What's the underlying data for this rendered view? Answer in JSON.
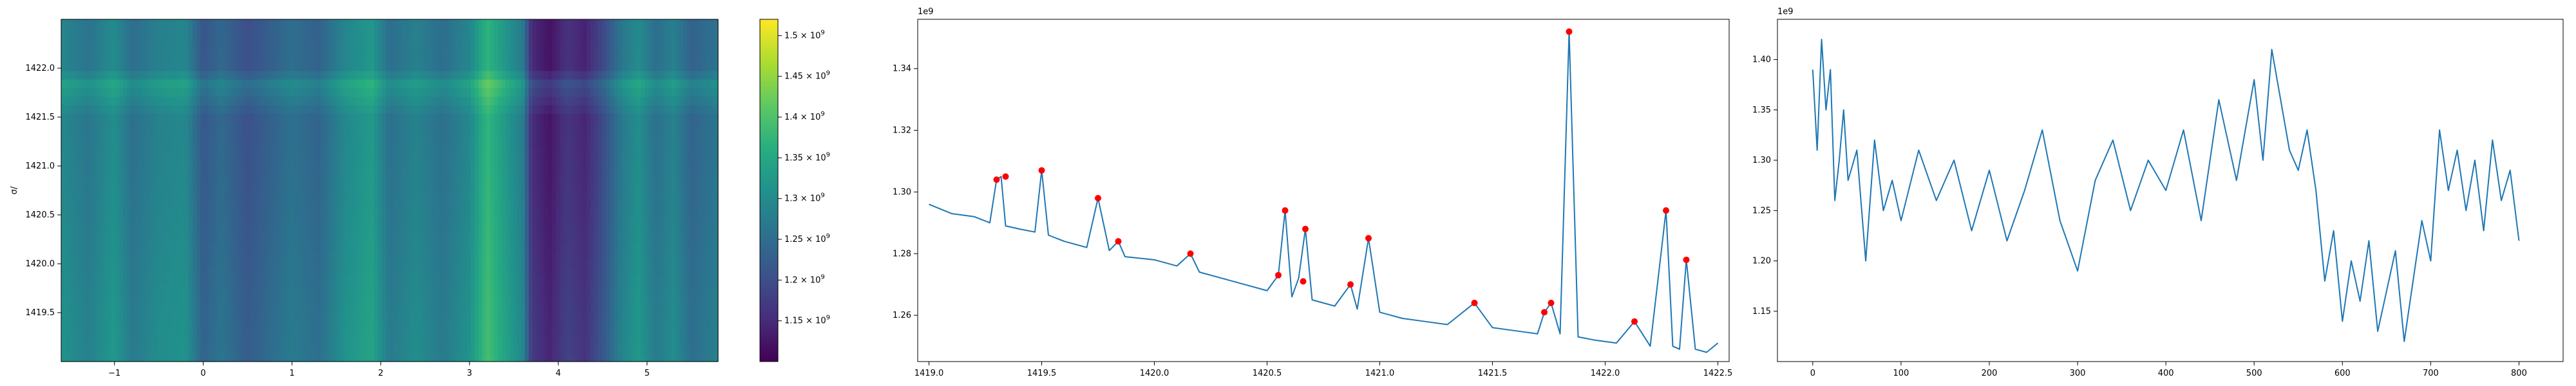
{
  "chart_data": [
    {
      "type": "heatmap",
      "title": "",
      "xlabel": "",
      "ylabel": "σ/",
      "xlim": [
        -1.6,
        5.8
      ],
      "ylim": [
        1419.0,
        1422.5
      ],
      "x_ticks": [
        -1,
        0,
        1,
        2,
        3,
        4,
        5
      ],
      "y_ticks": [
        1419.5,
        1420.0,
        1420.5,
        1421.0,
        1421.5,
        1422.0
      ],
      "colormap": "viridis",
      "colorbar": {
        "range": [
          1100000000.0,
          1520000000.0
        ],
        "ticks": [
          1150000000.0,
          1200000000.0,
          1250000000.0,
          1300000000.0,
          1350000000.0,
          1400000000.0,
          1450000000.0,
          1500000000.0
        ],
        "tick_mantissas": [
          "1.15",
          "1.2",
          "1.25",
          "1.3",
          "1.35",
          "1.4",
          "1.45",
          "1.5"
        ],
        "tick_base": "× 10",
        "tick_exponent": "9"
      },
      "column_profile": [
        [
          -1.6,
          1300000000.0
        ],
        [
          -1.3,
          1270000000.0
        ],
        [
          -1.0,
          1310000000.0
        ],
        [
          -0.8,
          1260000000.0
        ],
        [
          -0.5,
          1290000000.0
        ],
        [
          -0.2,
          1300000000.0
        ],
        [
          0.0,
          1220000000.0
        ],
        [
          0.2,
          1250000000.0
        ],
        [
          0.5,
          1210000000.0
        ],
        [
          0.8,
          1240000000.0
        ],
        [
          1.0,
          1260000000.0
        ],
        [
          1.3,
          1240000000.0
        ],
        [
          1.6,
          1300000000.0
        ],
        [
          1.9,
          1330000000.0
        ],
        [
          2.1,
          1260000000.0
        ],
        [
          2.4,
          1290000000.0
        ],
        [
          2.7,
          1260000000.0
        ],
        [
          3.0,
          1300000000.0
        ],
        [
          3.2,
          1380000000.0
        ],
        [
          3.4,
          1330000000.0
        ],
        [
          3.6,
          1280000000.0
        ],
        [
          3.7,
          1160000000.0
        ],
        [
          3.9,
          1130000000.0
        ],
        [
          4.1,
          1170000000.0
        ],
        [
          4.3,
          1150000000.0
        ],
        [
          4.5,
          1200000000.0
        ],
        [
          4.7,
          1270000000.0
        ],
        [
          4.9,
          1310000000.0
        ],
        [
          5.1,
          1260000000.0
        ],
        [
          5.3,
          1290000000.0
        ],
        [
          5.5,
          1240000000.0
        ],
        [
          5.8,
          1270000000.0
        ]
      ],
      "row_profile": [
        [
          1419.0,
          1296000000.0
        ],
        [
          1419.5,
          1290000000.0
        ],
        [
          1420.0,
          1280000000.0
        ],
        [
          1420.5,
          1270000000.0
        ],
        [
          1421.0,
          1263000000.0
        ],
        [
          1421.5,
          1257000000.0
        ],
        [
          1421.84,
          1352000000.0
        ],
        [
          1422.0,
          1253000000.0
        ],
        [
          1422.5,
          1250000000.0
        ]
      ]
    },
    {
      "type": "line",
      "title": "",
      "xlabel": "",
      "ylabel": "",
      "y_offset_label": "1e9",
      "xlim": [
        1418.95,
        1422.55
      ],
      "ylim": [
        1245000000.0,
        1356000000.0
      ],
      "x_ticks": [
        1419.0,
        1419.5,
        1420.0,
        1420.5,
        1421.0,
        1421.5,
        1422.0,
        1422.5
      ],
      "y_ticks": [
        1260000000.0,
        1280000000.0,
        1300000000.0,
        1320000000.0,
        1340000000.0
      ],
      "y_tick_labels": [
        "1.26",
        "1.28",
        "1.30",
        "1.32",
        "1.34"
      ],
      "series": [
        {
          "x": [
            1419.0,
            1419.1,
            1419.2,
            1419.27,
            1419.3,
            1419.32,
            1419.34,
            1419.4,
            1419.47,
            1419.5,
            1419.53,
            1419.6,
            1419.7,
            1419.75,
            1419.8,
            1419.84,
            1419.87,
            1420.0,
            1420.1,
            1420.16,
            1420.2,
            1420.3,
            1420.4,
            1420.5,
            1420.55,
            1420.58,
            1420.61,
            1420.64,
            1420.67,
            1420.7,
            1420.8,
            1420.87,
            1420.9,
            1420.95,
            1421.0,
            1421.1,
            1421.2,
            1421.3,
            1421.42,
            1421.5,
            1421.6,
            1421.7,
            1421.73,
            1421.76,
            1421.8,
            1421.84,
            1421.88,
            1421.95,
            1422.05,
            1422.13,
            1422.2,
            1422.27,
            1422.3,
            1422.33,
            1422.36,
            1422.4,
            1422.45,
            1422.5
          ],
          "y": [
            1296000000.0,
            1293000000.0,
            1292000000.0,
            1290000000.0,
            1304000000.0,
            1305000000.0,
            1289000000.0,
            1288000000.0,
            1287000000.0,
            1307000000.0,
            1286000000.0,
            1284000000.0,
            1282000000.0,
            1298000000.0,
            1281000000.0,
            1284000000.0,
            1279000000.0,
            1278000000.0,
            1276000000.0,
            1280000000.0,
            1274000000.0,
            1272000000.0,
            1270000000.0,
            1268000000.0,
            1273000000.0,
            1294000000.0,
            1266000000.0,
            1272000000.0,
            1288000000.0,
            1265000000.0,
            1263000000.0,
            1270000000.0,
            1262000000.0,
            1285000000.0,
            1261000000.0,
            1259000000.0,
            1258000000.0,
            1257000000.0,
            1264000000.0,
            1256000000.0,
            1255000000.0,
            1254000000.0,
            1261000000.0,
            1264000000.0,
            1254000000.0,
            1352000000.0,
            1253000000.0,
            1252000000.0,
            1251000000.0,
            1258000000.0,
            1250000000.0,
            1294000000.0,
            1250000000.0,
            1249000000.0,
            1278000000.0,
            1249000000.0,
            1248000000.0,
            1251000000.0
          ]
        }
      ],
      "markers": {
        "color": "#ff0000",
        "x": [
          1419.3,
          1419.34,
          1419.5,
          1419.75,
          1419.84,
          1420.16,
          1420.55,
          1420.58,
          1420.66,
          1420.67,
          1420.87,
          1420.95,
          1421.42,
          1421.73,
          1421.76,
          1421.84,
          1422.13,
          1422.27,
          1422.36
        ],
        "y": [
          1304000000.0,
          1305000000.0,
          1307000000.0,
          1298000000.0,
          1284000000.0,
          1280000000.0,
          1273000000.0,
          1294000000.0,
          1271000000.0,
          1288000000.0,
          1270000000.0,
          1285000000.0,
          1264000000.0,
          1261000000.0,
          1264000000.0,
          1352000000.0,
          1258000000.0,
          1294000000.0,
          1278000000.0
        ]
      }
    },
    {
      "type": "line",
      "title": "",
      "xlabel": "",
      "ylabel": "",
      "y_offset_label": "1e9",
      "xlim": [
        -40,
        850
      ],
      "ylim": [
        1100000000.0,
        1440000000.0
      ],
      "x_ticks": [
        0,
        100,
        200,
        300,
        400,
        500,
        600,
        700,
        800
      ],
      "y_ticks": [
        1150000000.0,
        1200000000.0,
        1250000000.0,
        1300000000.0,
        1350000000.0,
        1400000000.0
      ],
      "y_tick_labels": [
        "1.15",
        "1.20",
        "1.25",
        "1.30",
        "1.35",
        "1.40"
      ],
      "series": [
        {
          "x": [
            0,
            5,
            10,
            15,
            20,
            25,
            30,
            35,
            40,
            50,
            60,
            70,
            80,
            90,
            100,
            120,
            140,
            160,
            180,
            200,
            220,
            240,
            260,
            280,
            300,
            320,
            340,
            360,
            380,
            400,
            420,
            440,
            460,
            480,
            500,
            510,
            520,
            530,
            540,
            550,
            560,
            570,
            580,
            590,
            600,
            610,
            620,
            630,
            640,
            650,
            660,
            670,
            680,
            690,
            700,
            710,
            720,
            730,
            740,
            750,
            760,
            770,
            780,
            790,
            800
          ],
          "y": [
            1390000000.0,
            1310000000.0,
            1420000000.0,
            1350000000.0,
            1390000000.0,
            1260000000.0,
            1300000000.0,
            1350000000.0,
            1280000000.0,
            1310000000.0,
            1200000000.0,
            1320000000.0,
            1250000000.0,
            1280000000.0,
            1240000000.0,
            1310000000.0,
            1260000000.0,
            1300000000.0,
            1230000000.0,
            1290000000.0,
            1220000000.0,
            1270000000.0,
            1330000000.0,
            1240000000.0,
            1190000000.0,
            1280000000.0,
            1320000000.0,
            1250000000.0,
            1300000000.0,
            1270000000.0,
            1330000000.0,
            1240000000.0,
            1360000000.0,
            1280000000.0,
            1380000000.0,
            1300000000.0,
            1410000000.0,
            1360000000.0,
            1310000000.0,
            1290000000.0,
            1330000000.0,
            1270000000.0,
            1180000000.0,
            1230000000.0,
            1140000000.0,
            1200000000.0,
            1160000000.0,
            1220000000.0,
            1130000000.0,
            1170000000.0,
            1210000000.0,
            1120000000.0,
            1180000000.0,
            1240000000.0,
            1200000000.0,
            1330000000.0,
            1270000000.0,
            1310000000.0,
            1250000000.0,
            1300000000.0,
            1230000000.0,
            1320000000.0,
            1260000000.0,
            1290000000.0,
            1220000000.0
          ]
        }
      ]
    }
  ]
}
